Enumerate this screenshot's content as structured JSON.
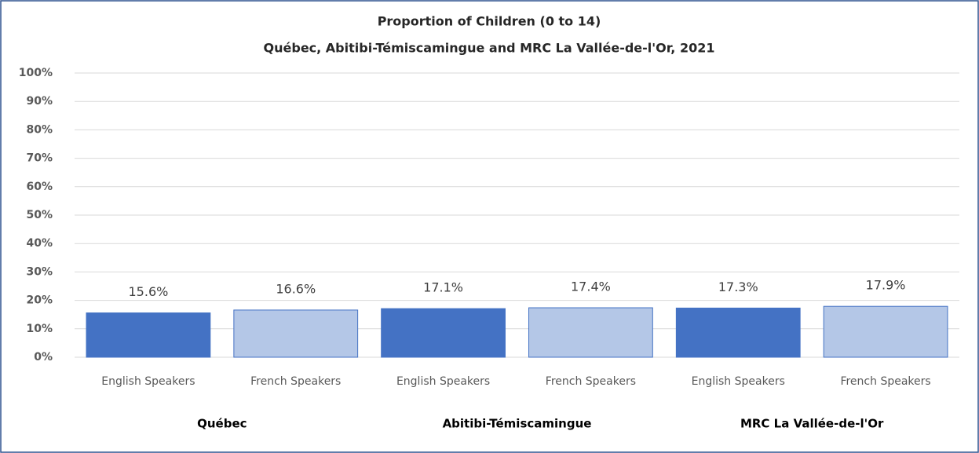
{
  "chart_data": {
    "type": "bar",
    "title": "Proportion of Children (0 to 14)",
    "subtitle": "Québec, Abitibi-Témiscamingue  and MRC La Vallée-de-l'Or, 2021",
    "categories": [
      "English Speakers",
      "French Speakers",
      "English Speakers",
      "French Speakers",
      "English Speakers",
      "French Speakers"
    ],
    "groups": [
      "Québec",
      "Abitibi-Témiscamingue",
      "MRC La Vallée-de-l'Or"
    ],
    "values": [
      15.6,
      16.6,
      17.1,
      17.4,
      17.3,
      17.9
    ],
    "value_labels": [
      "15.6%",
      "16.6%",
      "17.1%",
      "17.4%",
      "17.3%",
      "17.9%"
    ],
    "colors": [
      "#4472c4",
      "#b4c7e7",
      "#4472c4",
      "#b4c7e7",
      "#4472c4",
      "#b4c7e7"
    ],
    "ylim": [
      0,
      100
    ],
    "yticks": [
      {
        "value": 0,
        "label": "0%"
      },
      {
        "value": 10,
        "label": "10%"
      },
      {
        "value": 20,
        "label": "20%"
      },
      {
        "value": 30,
        "label": "30%"
      },
      {
        "value": 40,
        "label": "40%"
      },
      {
        "value": 50,
        "label": "50%"
      },
      {
        "value": 60,
        "label": "60%"
      },
      {
        "value": 70,
        "label": "70%"
      },
      {
        "value": 80,
        "label": "80%"
      },
      {
        "value": 90,
        "label": "90%"
      },
      {
        "value": 100,
        "label": "100%"
      }
    ],
    "grid": true
  }
}
